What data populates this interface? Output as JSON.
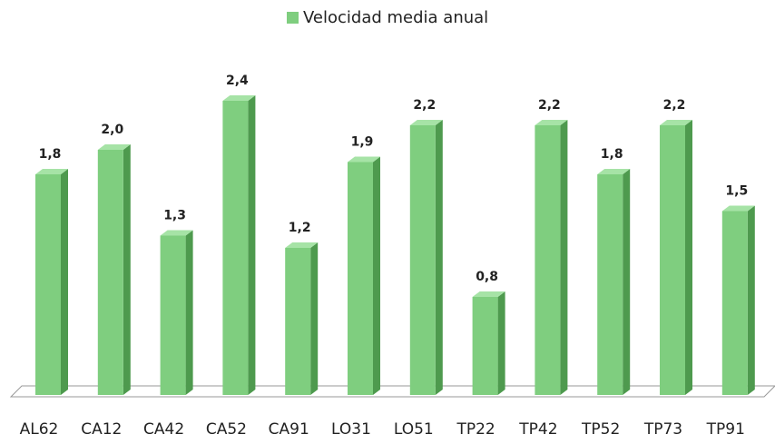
{
  "chart_data": {
    "type": "bar3d",
    "categories": [
      "AL62",
      "CA12",
      "CA42",
      "CA52",
      "CA91",
      "LO31",
      "LO51",
      "TP22",
      "TP42",
      "TP52",
      "TP73",
      "TP91"
    ],
    "series": [
      {
        "name": "Velocidad media anual",
        "color": "#7fce7f",
        "values": [
          1.8,
          2.0,
          1.3,
          2.4,
          1.2,
          1.9,
          2.2,
          0.8,
          2.2,
          1.8,
          2.2,
          1.5
        ],
        "value_labels": [
          "1,8",
          "2,0",
          "1,3",
          "2,4",
          "1,2",
          "1,9",
          "2,2",
          "0,8",
          "2,2",
          "1,8",
          "2,2",
          "1,5"
        ]
      }
    ],
    "legend": "top"
  }
}
